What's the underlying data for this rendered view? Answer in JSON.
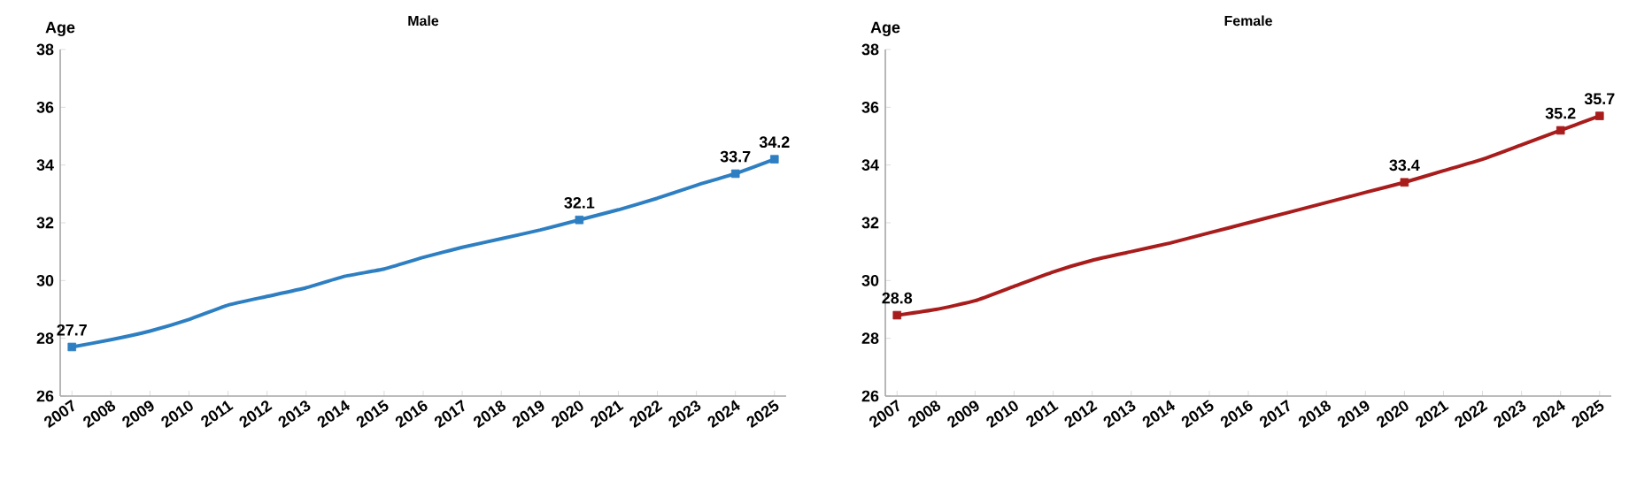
{
  "chart_data": [
    {
      "type": "line",
      "title": "Male",
      "ylabel": "Age",
      "categories": [
        "2007",
        "2008",
        "2009",
        "2010",
        "2011",
        "2012",
        "2013",
        "2014",
        "2015",
        "2016",
        "2017",
        "2018",
        "2019",
        "2020",
        "2021",
        "2022",
        "2023",
        "2024",
        "2025"
      ],
      "series": [
        {
          "color": "#2e7fc2",
          "values": [
            27.7,
            27.95,
            28.25,
            28.65,
            29.15,
            29.45,
            29.75,
            30.15,
            30.4,
            30.8,
            31.15,
            31.45,
            31.75,
            32.1,
            32.45,
            32.85,
            33.3,
            33.7,
            34.2
          ],
          "value_labels": [
            "27.7",
            null,
            null,
            null,
            null,
            null,
            null,
            null,
            null,
            null,
            null,
            null,
            null,
            "32.1",
            null,
            null,
            null,
            "33.7",
            "34.2"
          ]
        }
      ],
      "ylim": [
        26,
        38
      ],
      "yticks": [
        26,
        28,
        30,
        32,
        34,
        36,
        38
      ]
    },
    {
      "type": "line",
      "title": "Female",
      "ylabel": "Age",
      "categories": [
        "2007",
        "2008",
        "2009",
        "2010",
        "2011",
        "2012",
        "2013",
        "2014",
        "2015",
        "2016",
        "2017",
        "2018",
        "2019",
        "2020",
        "2021",
        "2022",
        "2023",
        "2024",
        "2025"
      ],
      "series": [
        {
          "color": "#a81c1c",
          "values": [
            28.8,
            29.0,
            29.3,
            29.8,
            30.3,
            30.7,
            31.0,
            31.3,
            31.65,
            32.0,
            32.35,
            32.7,
            33.05,
            33.4,
            33.8,
            34.2,
            34.7,
            35.2,
            35.7
          ],
          "value_labels": [
            "28.8",
            null,
            null,
            null,
            null,
            null,
            null,
            null,
            null,
            null,
            null,
            null,
            null,
            "33.4",
            null,
            null,
            null,
            "35.2",
            "35.7"
          ]
        }
      ],
      "ylim": [
        26,
        38
      ],
      "yticks": [
        26,
        28,
        30,
        32,
        34,
        36,
        38
      ]
    }
  ]
}
